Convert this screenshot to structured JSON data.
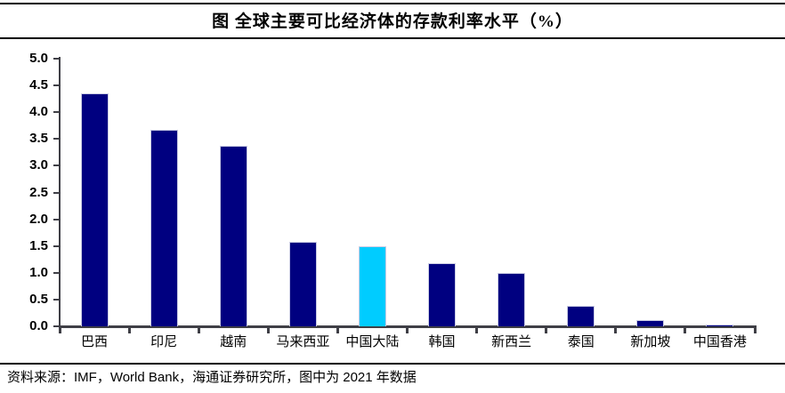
{
  "header": {
    "title": "图 全球主要可比经济体的存款利率水平（%）"
  },
  "footer": {
    "source_note": "资料来源：IMF，World Bank，海通证券研究所，图中为 2021 年数据"
  },
  "colors": {
    "bar": "#000080",
    "bar_highlight": "#00ccff",
    "bar_border": "#c9cbe3",
    "axis": "#3f3f46",
    "rule": "#000000"
  },
  "chart_data": {
    "type": "bar",
    "title": "图 全球主要可比经济体的存款利率水平（%）",
    "categories": [
      "巴西",
      "印尼",
      "越南",
      "马来西亚",
      "中国大陆",
      "韩国",
      "新西兰",
      "泰国",
      "新加坡",
      "中国香港"
    ],
    "values": [
      4.35,
      3.67,
      3.38,
      1.57,
      1.5,
      1.18,
      1.0,
      0.38,
      0.11,
      0.03
    ],
    "highlight_index": 4,
    "highlight_category": "中国大陆",
    "xlabel": "",
    "ylabel": "",
    "ylim": [
      0.0,
      5.0
    ],
    "ytick_step": 0.5,
    "yticks": [
      "0.0",
      "0.5",
      "1.0",
      "1.5",
      "2.0",
      "2.5",
      "3.0",
      "3.5",
      "4.0",
      "4.5",
      "5.0"
    ],
    "grid": false,
    "legend": false,
    "unit": "%",
    "data_year_note": "2021"
  }
}
